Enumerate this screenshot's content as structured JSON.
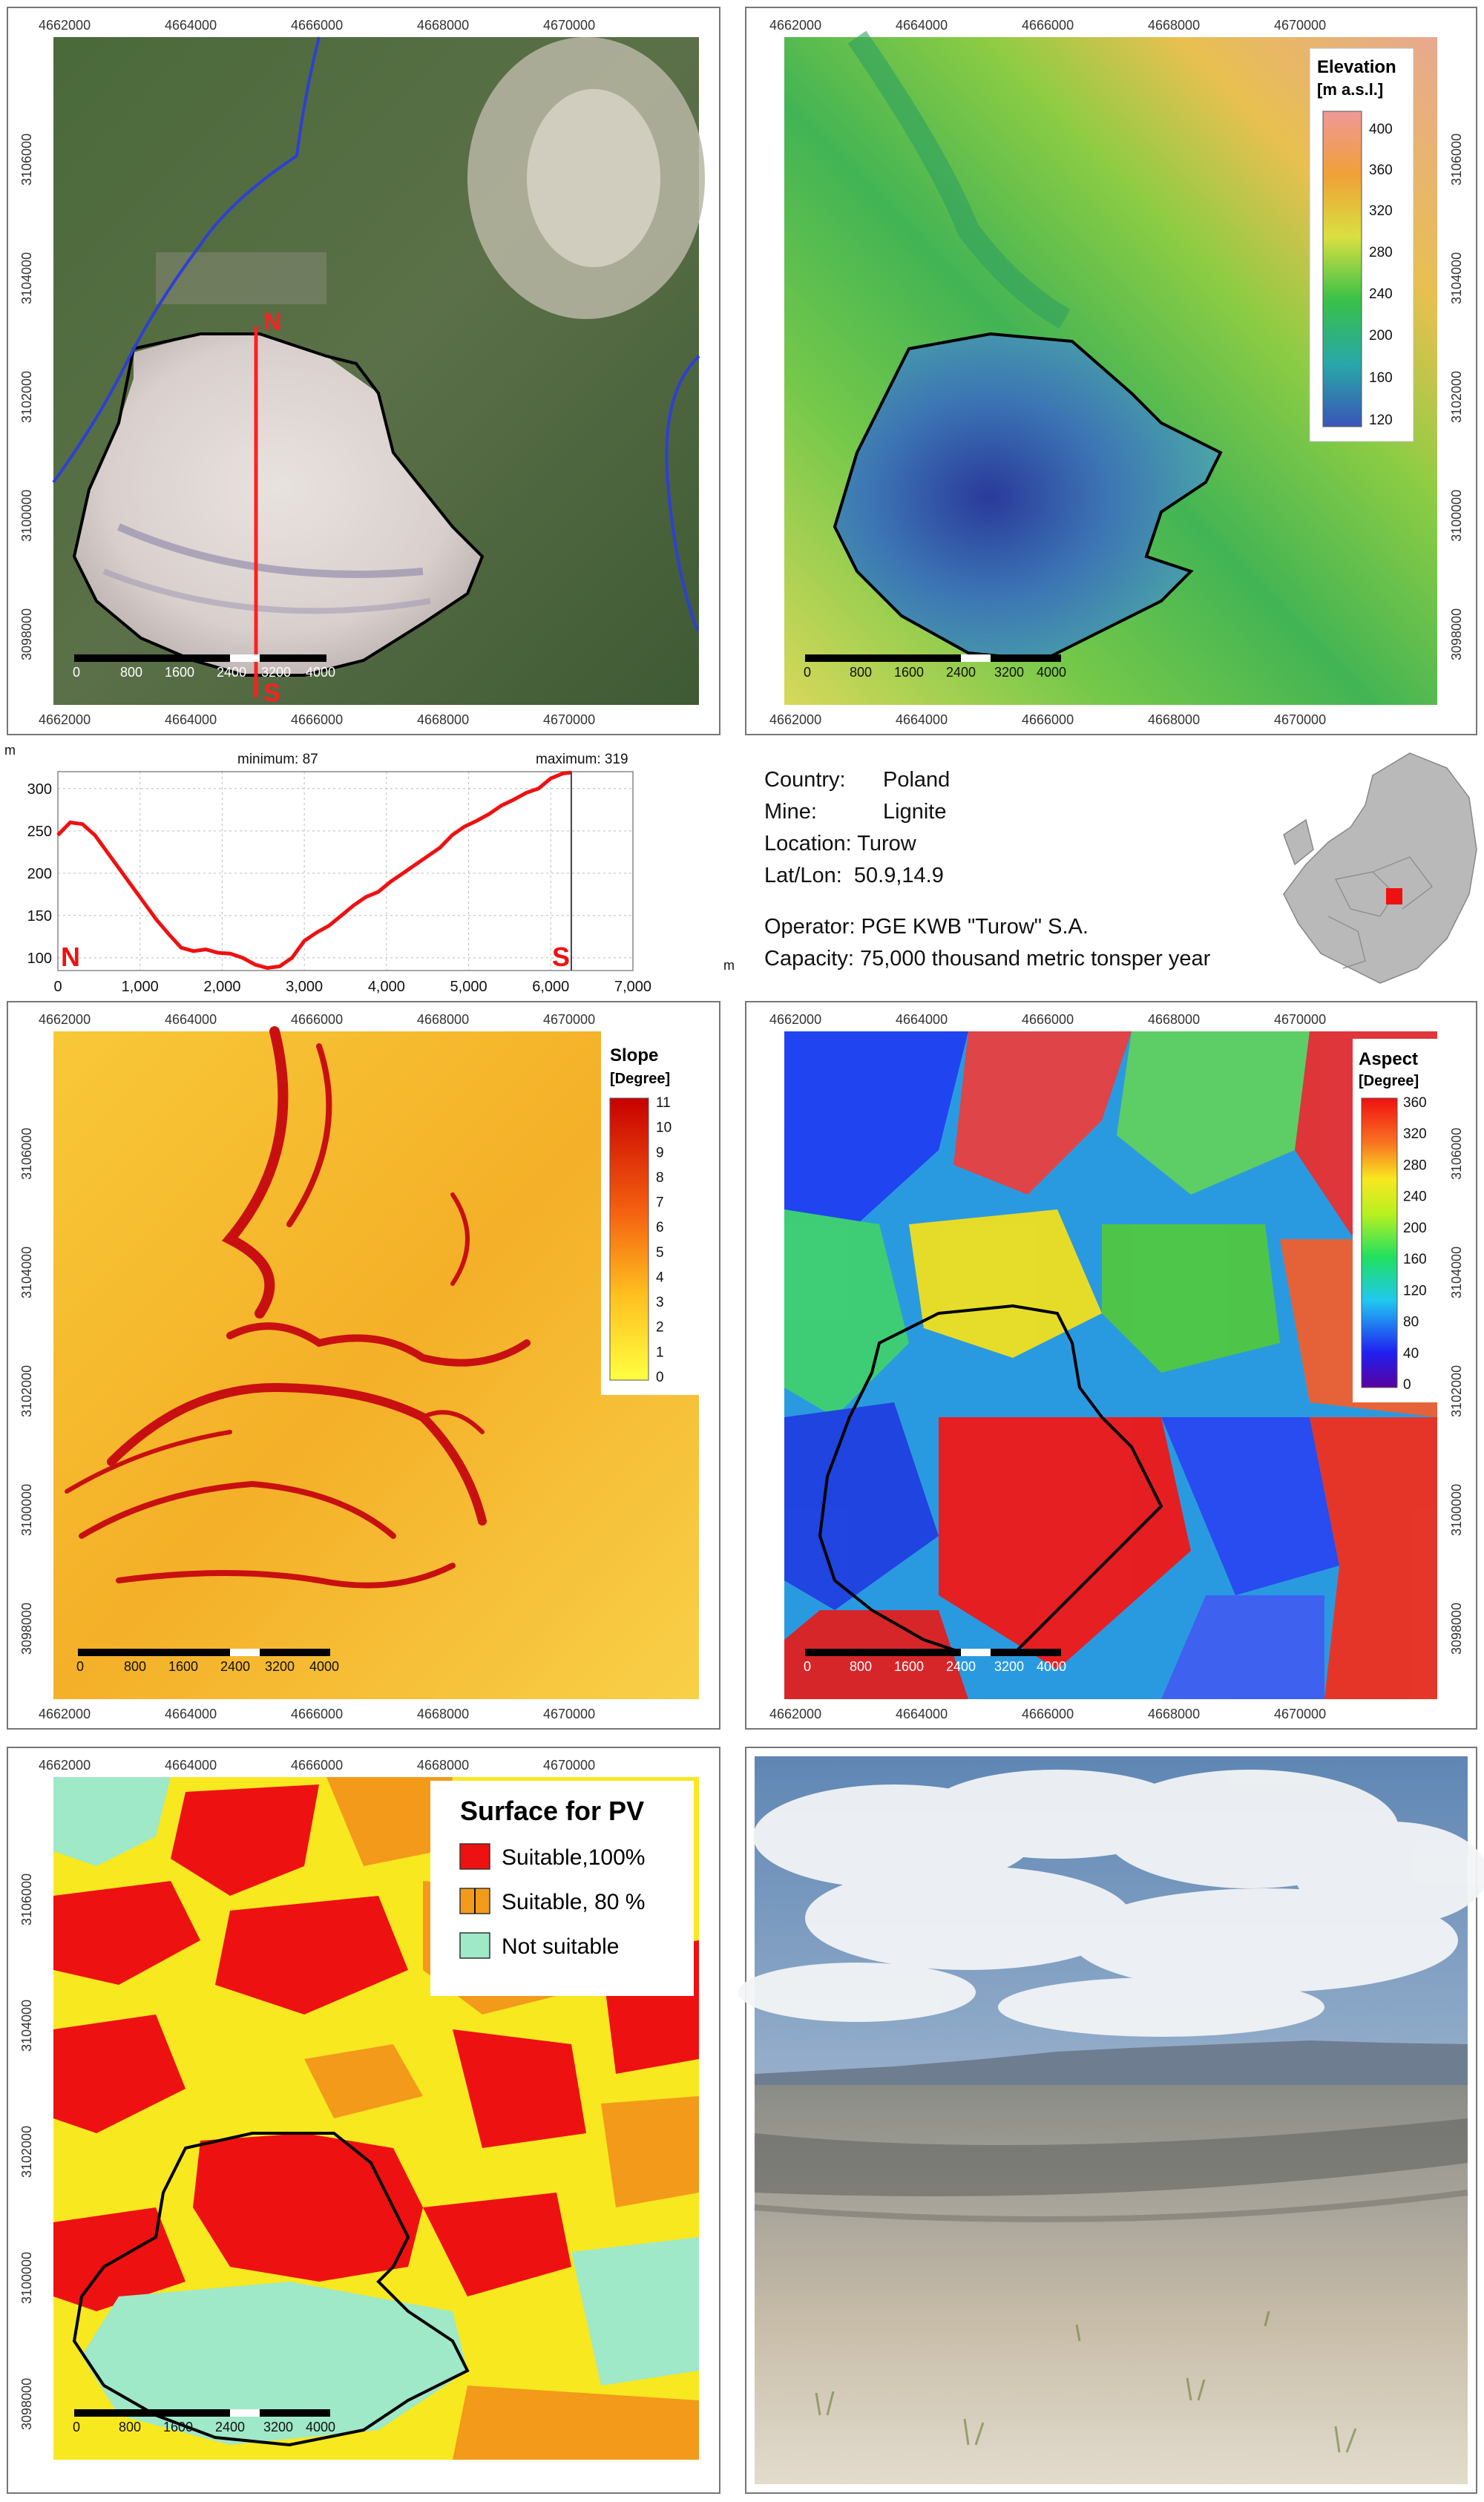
{
  "coord_labels": {
    "x": [
      "4662000",
      "4664000",
      "4666000",
      "4668000",
      "4670000"
    ],
    "x_top_first_top_panels": "4662000",
    "y": [
      "3106000",
      "3104000",
      "3102000",
      "3100000",
      "3098000"
    ]
  },
  "scale_bar": {
    "ticks": [
      "0",
      "800",
      "1600",
      "2400",
      "3200",
      "4000"
    ]
  },
  "profile_marks": {
    "north": "N",
    "south": "S"
  },
  "elevation_legend": {
    "title_line1": "Elevation",
    "title_line2": "[m  a.s.l.]",
    "ticks": [
      "400",
      "360",
      "320",
      "280",
      "240",
      "200",
      "160",
      "120"
    ]
  },
  "slope_legend": {
    "title_line1": "Slope",
    "title_line2": "[Degree]",
    "ticks": [
      "11",
      "10",
      "9",
      "8",
      "7",
      "6",
      "5",
      "4",
      "3",
      "2",
      "1",
      "0"
    ]
  },
  "aspect_legend": {
    "title_line1": "Aspect",
    "title_line2": "[Degree]",
    "ticks": [
      "360",
      "320",
      "280",
      "240",
      "200",
      "160",
      "120",
      "80",
      "40",
      "0"
    ]
  },
  "pv_legend": {
    "title": "Surface for PV",
    "items": [
      {
        "label": "Suitable,100%",
        "color": "#ee1111"
      },
      {
        "label": "Suitable, 80 %",
        "color": "#f39a1a"
      },
      {
        "label": "Not suitable",
        "color": "#9fe8c8"
      }
    ]
  },
  "profile_chart": {
    "y_unit": "m",
    "x_unit": "m",
    "min_label": "minimum: 87",
    "max_label": "maximum: 319",
    "y_ticks": [
      "300",
      "250",
      "200",
      "150",
      "100"
    ],
    "x_ticks": [
      "0",
      "1,000",
      "2,000",
      "3,000",
      "4,000",
      "5,000",
      "6,000",
      "7,000"
    ],
    "start_label": "N",
    "end_label": "S"
  },
  "chart_data": {
    "type": "line",
    "x": [
      0,
      150,
      300,
      450,
      600,
      750,
      900,
      1050,
      1200,
      1350,
      1500,
      1650,
      1800,
      1950,
      2100,
      2250,
      2400,
      2550,
      2700,
      2850,
      3000,
      3150,
      3300,
      3450,
      3600,
      3750,
      3900,
      4050,
      4200,
      4350,
      4500,
      4650,
      4800,
      4950,
      5100,
      5250,
      5400,
      5550,
      5700,
      5850,
      6000,
      6150,
      6250
    ],
    "series": [
      {
        "values": [
          245,
          260,
          258,
          245,
          225,
          205,
          185,
          165,
          145,
          128,
          112,
          108,
          110,
          106,
          105,
          100,
          92,
          88,
          90,
          100,
          120,
          130,
          138,
          150,
          162,
          172,
          178,
          190,
          200,
          210,
          220,
          230,
          245,
          255,
          262,
          270,
          280,
          287,
          295,
          300,
          312,
          318,
          319
        ]
      }
    ],
    "ylim": [
      85,
      320
    ],
    "xlim": [
      0,
      7000
    ],
    "grid": true,
    "title": ""
  },
  "info": {
    "country_label": "Country:",
    "country": "Poland",
    "mine_label": "Mine:",
    "mine": "Lignite",
    "location": "Location: Turow",
    "latlon": "Lat/Lon:  50.9,14.9",
    "operator": "Operator: PGE KWB \"Turow\" S.A.",
    "capacity": "Capacity: 75,000 thousand metric tonsper year"
  }
}
